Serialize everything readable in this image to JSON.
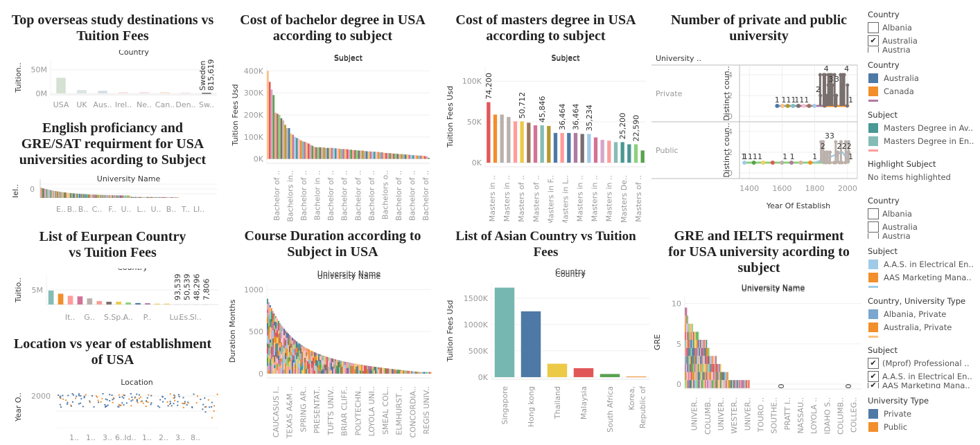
{
  "chart_data": [
    {
      "id": "overseas",
      "type": "bar",
      "title": "Top overseas study destinations vs Tuition Fees",
      "header": "Country",
      "ylabel": "Tuition..",
      "yticks": [
        "50M",
        "0M"
      ],
      "ytick_values": [
        50000000,
        0
      ],
      "ylim": [
        -3000000,
        70000000
      ],
      "categories": [
        "USA",
        "UK",
        "Aus..",
        "Irel..",
        "Ne..",
        "Can..",
        "Den..",
        "Sw.."
      ],
      "values": [
        33000000,
        7000000,
        5500000,
        2500000,
        2500000,
        2500000,
        1500000,
        815619
      ],
      "colors": [
        "#d5e2d3",
        "#d9e4e3",
        "#d5dde5",
        "#f5dede",
        "#f2dcdc",
        "#f6e2d3",
        "#f0dde0",
        "#111111"
      ],
      "annotations": [
        {
          "category": "Sw..",
          "text": [
            "Sweden",
            "815,619"
          ]
        }
      ]
    },
    {
      "id": "english",
      "type": "bar",
      "title": "English proficiancy and GRE/SAT requirment for USA universities acording to Subject",
      "header": "University Name",
      "ylabel": "Iel..",
      "yticks": [
        "0"
      ],
      "categories": [
        "E..",
        "B..",
        "B..",
        "C..",
        "F..",
        "U..",
        "L..",
        "U..",
        "B..",
        "T..",
        "LI.."
      ]
    },
    {
      "id": "european",
      "type": "bar",
      "title": "List of Eurpean Country vs Tuition Fees",
      "header": "Country",
      "ylabel": "Tuitio..",
      "yticks": [
        "5M"
      ],
      "ytick_values": [
        5000000
      ],
      "ylim": [
        0,
        10000000
      ],
      "categories": [
        "",
        "",
        "It..",
        "",
        "G..",
        "",
        "S..",
        "Sp..",
        "A..",
        "",
        "P..",
        "",
        "",
        "Lu..",
        "Es..",
        "Sl..",
        ""
      ],
      "values": [
        4800000,
        3700000,
        3000000,
        2800000,
        2100000,
        1200000,
        950000,
        950000,
        700000,
        500000,
        450000,
        300000,
        300000,
        93539,
        50539,
        48296,
        7806
      ],
      "colors": [
        "#86bcb6",
        "#f28e2b",
        "#ff9d9a",
        "#d37295",
        "#bab0ac",
        "#fa9e9b",
        "#79706e",
        "#edc948",
        "#8cd17d",
        "#4e79a7",
        "#b07aa1",
        "#f1ce63",
        "#f1ce63",
        "#cccccc",
        "#cccccc",
        "#cccccc",
        "#cccccc"
      ],
      "labels": [
        "",
        "",
        "",
        "",
        "",
        "",
        "",
        "",
        "",
        "",
        "",
        "",
        "",
        "93,539",
        "50,539",
        "48,296",
        "7,806"
      ]
    },
    {
      "id": "location",
      "type": "scatter",
      "title": "Location vs year of establishment of USA",
      "header": "Location",
      "ylabel": "Year O..",
      "yticks": [
        "2000"
      ],
      "categories": [
        "1..",
        "1..",
        "3..",
        "6..",
        "Id..",
        "1..",
        "2..",
        "3..",
        "8.."
      ],
      "series": [
        {
          "name": "Private",
          "color": "#4e79a7"
        },
        {
          "name": "Public",
          "color": "#f28e2b"
        }
      ]
    },
    {
      "id": "bachelor",
      "type": "bar",
      "title": "Cost of bachelor degree in USA according to subject",
      "header": "Subject",
      "ylabel": "Tuition Fees Usd",
      "yticks": [
        "400K",
        "300K",
        "200K",
        "100K",
        "0K"
      ],
      "ytick_values": [
        400000,
        300000,
        200000,
        100000,
        0
      ],
      "ylim": [
        -20000,
        420000
      ],
      "categories": [
        "Bachelor of ..",
        "Bachelors in..",
        "Bachelor of ..",
        "Bachelor in ..",
        "Bachelor of ..",
        "Bachelor of ..",
        "Bachelor of ..",
        "Bachelor of ..",
        "Bachelors o..",
        "Bachelor of ..",
        "Bachelor of ..",
        "Bachelor of .."
      ],
      "values": [
        400000,
        350000,
        315000,
        290000,
        210000,
        205000,
        200000,
        185000,
        175000,
        155000,
        140000,
        140000,
        115000,
        110000,
        100000,
        95000,
        92000,
        85000,
        80000,
        78000,
        75000,
        70000,
        65000,
        60000,
        55000,
        53000,
        53000,
        53000,
        52000,
        52000,
        50000,
        50000,
        50000,
        50000,
        50000,
        48000,
        48000,
        46000,
        45000,
        45000,
        45000,
        44000,
        42000,
        42000,
        40000,
        40000,
        39000,
        38000,
        38000,
        38000,
        36000,
        35000,
        34000,
        34000,
        33000,
        33000,
        32000,
        32000,
        30000,
        30000,
        28000,
        27000,
        27000,
        26000,
        26000,
        24000,
        24000,
        23000,
        22000,
        22000,
        21000,
        20000,
        20000,
        19000,
        18000,
        17000,
        17000,
        16000,
        15000,
        15000,
        14000,
        13000,
        12000,
        5000
      ]
    },
    {
      "id": "masters",
      "type": "bar",
      "title": "Cost of masters degree in USA according to subject",
      "header": "Subject",
      "ylabel": "Tuition Fees Usd",
      "yticks": [
        "100K",
        "50K",
        "0K"
      ],
      "ytick_values": [
        100000,
        50000,
        0
      ],
      "ylim": [
        -5000,
        118000
      ],
      "categories": [
        "Masters in ..",
        "Masters in ..",
        "Masters of ..",
        "Masters of ..",
        "Masters in F..",
        "Masters in L..",
        "Masters in ..",
        "Masters in ..",
        "Masters in ..",
        "Masters De..",
        "Masters of .."
      ],
      "values": [
        74200,
        59000,
        59000,
        56000,
        50712,
        50712,
        49000,
        45846,
        45846,
        45000,
        36464,
        36464,
        36464,
        36464,
        35234,
        35234,
        31000,
        28000,
        27000,
        25200,
        25200,
        22590,
        22590,
        15000
      ],
      "colors": [
        "#e15759",
        "#f28e2b",
        "#bab0ac",
        "#bab0ac",
        "#ff9d9a",
        "#edc948",
        "#9c755f",
        "#d37295",
        "#86bcb6",
        "#b6992d",
        "#4e79a7",
        "#ff9d9a",
        "#4e79a7",
        "#b07aa1",
        "#79706e",
        "#a0cbe8",
        "#d37295",
        "#d4a6c8",
        "#fa9e9b",
        "#86bcb6",
        "#499894",
        "#499894",
        "#8cd17d",
        "#59a14f"
      ],
      "labels": [
        "74,200",
        "",
        "",
        "",
        "",
        "50,712",
        "",
        "",
        "45,846",
        "",
        "",
        "36,464",
        "",
        "36,464",
        "",
        "35,234",
        "",
        "",
        "",
        "",
        "25,200",
        "",
        "22,590",
        ""
      ]
    },
    {
      "id": "privpub",
      "type": "line",
      "title": "Number of private and public university",
      "row_header": "University ..",
      "rows": [
        "Private",
        "Public"
      ],
      "ylabel": "Distinct coun..",
      "yticks": [
        "4",
        "2",
        "0"
      ],
      "ylim": [
        0,
        4.8
      ],
      "xlabel": "Year Of Establish",
      "xticks": [
        "1400",
        "1600",
        "1800",
        "2000"
      ],
      "xtick_values": [
        1400,
        1600,
        1800,
        2000
      ],
      "xlim": [
        1340,
        2060
      ],
      "private_labels": [
        {
          "x": 1570,
          "y": 1,
          "t": "1"
        },
        {
          "x": 1640,
          "y": 1,
          "t": "111"
        },
        {
          "x": 1720,
          "y": 1,
          "t": "111"
        },
        {
          "x": 1820,
          "y": 2,
          "t": "2"
        },
        {
          "x": 1870,
          "y": 4,
          "t": "4"
        },
        {
          "x": 1900,
          "y": 3,
          "t": "3"
        },
        {
          "x": 1935,
          "y": 3,
          "t": "3"
        },
        {
          "x": 1995,
          "y": 4,
          "t": "4"
        },
        {
          "x": 2020,
          "y": 1,
          "t": "1"
        }
      ],
      "public_labels": [
        {
          "x": 1365,
          "y": 1,
          "t": "1"
        },
        {
          "x": 1420,
          "y": 1,
          "t": "1111"
        },
        {
          "x": 1640,
          "y": 1,
          "t": "1 1"
        },
        {
          "x": 1800,
          "y": 1,
          "t": "1"
        },
        {
          "x": 1850,
          "y": 2,
          "t": "2"
        },
        {
          "x": 1890,
          "y": 3,
          "t": "33"
        },
        {
          "x": 1950,
          "y": 2,
          "t": "2"
        },
        {
          "x": 1995,
          "y": 2,
          "t": "22"
        },
        {
          "x": 2020,
          "y": 1,
          "t": "1"
        }
      ]
    },
    {
      "id": "duration",
      "type": "bar",
      "title": "Course Duration according to Subject in USA",
      "header": "University Name",
      "ylabel": "Duration Months",
      "yticks": [
        "1000",
        "500",
        "0"
      ],
      "ytick_values": [
        1000,
        500,
        0
      ],
      "ylim": [
        -50,
        1060
      ],
      "categories": [
        "CAUCASUS I..",
        "TEXAS A&M ..",
        "SPRING AR..",
        "PRESENTAT..",
        "TUFTS UNIV..",
        "BRIAR CLIFF..",
        "POLYTECHN..",
        "LOYOLA UNI..",
        "SMEAL COL..",
        "ELMHURST ..",
        "CONCORDIA..",
        "REGIS UNIV.."
      ]
    },
    {
      "id": "asian",
      "type": "bar",
      "title": "List of Asian Country vs  Tuition Fees",
      "header": "Country",
      "ylabel": "Tuition Fees Usd",
      "yticks": [
        "1500K",
        "1000K",
        "500K",
        "0K"
      ],
      "ytick_values": [
        1500000,
        1000000,
        500000,
        0
      ],
      "ylim": [
        -40000,
        1800000
      ],
      "categories": [
        "Singapore",
        "Hong kong",
        "Thailand",
        "Malaysia",
        "South Africa",
        "Korea, Republic of"
      ],
      "values": [
        1700000,
        1250000,
        255000,
        170000,
        60000,
        12000
      ],
      "colors": [
        "#76b7b2",
        "#4e79a7",
        "#edc948",
        "#e15759",
        "#59a14f",
        "#f28e2b"
      ]
    },
    {
      "id": "gre",
      "type": "bar",
      "title": "GRE and IELTS requirment for USA university acording to subject",
      "header": "University Name",
      "ylabel": "GRE",
      "yticks": [
        "10",
        "5",
        "0"
      ],
      "ytick_values": [
        10,
        5,
        0
      ],
      "ylim": [
        -0.6,
        11
      ],
      "categories": [
        "UNIVER..",
        "COLUMB..",
        "UNIVER..",
        "WESTER..",
        "UNIVER..",
        "TOURO ..",
        "SOUTHE..",
        "PRATT I..",
        "NASSAU..",
        "LOYOLA ..",
        "IDAHO S..",
        "COLUMB..",
        "COLLEG.."
      ],
      "zero_labels": [
        "0",
        "0"
      ]
    }
  ],
  "legends": {
    "filter_country_1": {
      "title": "Country",
      "items": [
        {
          "label": "Albania",
          "checked": false
        },
        {
          "label": "Australia",
          "checked": true
        },
        {
          "label": "Austria",
          "checked": false
        }
      ]
    },
    "color_country": {
      "title": "Country",
      "items": [
        {
          "label": "Australia",
          "color": "#4e79a7"
        },
        {
          "label": "Canada",
          "color": "#f28e2b"
        }
      ],
      "more_color": "#b07aa1"
    },
    "color_subject_1": {
      "title": "Subject",
      "items": [
        {
          "label": "Masters Degree in Av..",
          "color": "#499894"
        },
        {
          "label": "Masters Degree in En..",
          "color": "#86bcb6"
        }
      ],
      "more_color": "#ff9d9a"
    },
    "highlight_subject": {
      "title": "Highlight Subject",
      "text": "No items highlighted"
    },
    "filter_country_2": {
      "title": "Country",
      "items": [
        {
          "label": "Albania",
          "checked": false
        },
        {
          "label": "Australia",
          "checked": false
        },
        {
          "label": "Austria",
          "checked": false
        }
      ]
    },
    "color_subject_2": {
      "title": "Subject",
      "items": [
        {
          "label": "A.A.S. in Electrical En..",
          "color": "#a0cbe8"
        },
        {
          "label": "AAS Marketing Mana..",
          "color": "#f28e2b"
        }
      ],
      "more_color": "#a0cbe8"
    },
    "color_country_type": {
      "title": "Country, University Type",
      "items": [
        {
          "label": "Albania, Private",
          "color": "#7aa6cf"
        },
        {
          "label": "Australia, Private",
          "color": "#f28e2b"
        }
      ],
      "more_color": "#ffbe7d"
    },
    "filter_subject": {
      "title": "Subject",
      "items": [
        {
          "label": "(Mprof) Professional ..",
          "checked": true
        },
        {
          "label": "A.A.S. in Electrical En..",
          "checked": true
        },
        {
          "label": "AAS Marketing Mana..",
          "checked": true
        }
      ]
    },
    "color_univ_type": {
      "title": "University Type",
      "items": [
        {
          "label": "Private",
          "color": "#4e79a7"
        },
        {
          "label": "Public",
          "color": "#f28e2b"
        }
      ]
    }
  },
  "palette": [
    "#4e79a7",
    "#a0cbe8",
    "#f28e2b",
    "#ffbe7d",
    "#59a14f",
    "#8cd17d",
    "#b6992d",
    "#f1ce63",
    "#499894",
    "#86bcb6",
    "#e15759",
    "#ff9d9a",
    "#79706e",
    "#bab0ac",
    "#d37295",
    "#fabfd2",
    "#b07aa1",
    "#d4a6c8",
    "#9d7660",
    "#d7b5a6"
  ]
}
